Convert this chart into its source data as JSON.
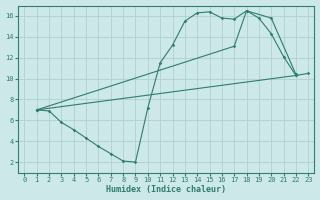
{
  "xlabel": "Humidex (Indice chaleur)",
  "bg_color": "#cce8e8",
  "grid_color": "#b0d0d0",
  "line_color": "#2e7d6e",
  "xlim": [
    -0.5,
    23.5
  ],
  "ylim": [
    1,
    17
  ],
  "xticks": [
    0,
    1,
    2,
    3,
    4,
    5,
    6,
    7,
    8,
    9,
    10,
    11,
    12,
    13,
    14,
    15,
    16,
    17,
    18,
    19,
    20,
    21,
    22,
    23
  ],
  "yticks": [
    2,
    4,
    6,
    8,
    10,
    12,
    14,
    16
  ],
  "line1_x": [
    1,
    2,
    3,
    4,
    5,
    6,
    7,
    8,
    9,
    10,
    11,
    12,
    13,
    14,
    15,
    16,
    17,
    18,
    19,
    20,
    21,
    22,
    23
  ],
  "line1_y": [
    7.0,
    6.9,
    5.8,
    5.1,
    4.3,
    3.5,
    2.8,
    2.1,
    2.0,
    7.2,
    11.5,
    13.2,
    15.5,
    16.3,
    16.4,
    15.8,
    15.7,
    16.5,
    15.8,
    14.3,
    12.1,
    10.3,
    10.5
  ],
  "line2_x": [
    1,
    17,
    18,
    20,
    22
  ],
  "line2_y": [
    7.0,
    13.1,
    16.5,
    15.8,
    10.4
  ],
  "line3_x": [
    1,
    22
  ],
  "line3_y": [
    7.0,
    10.3
  ]
}
